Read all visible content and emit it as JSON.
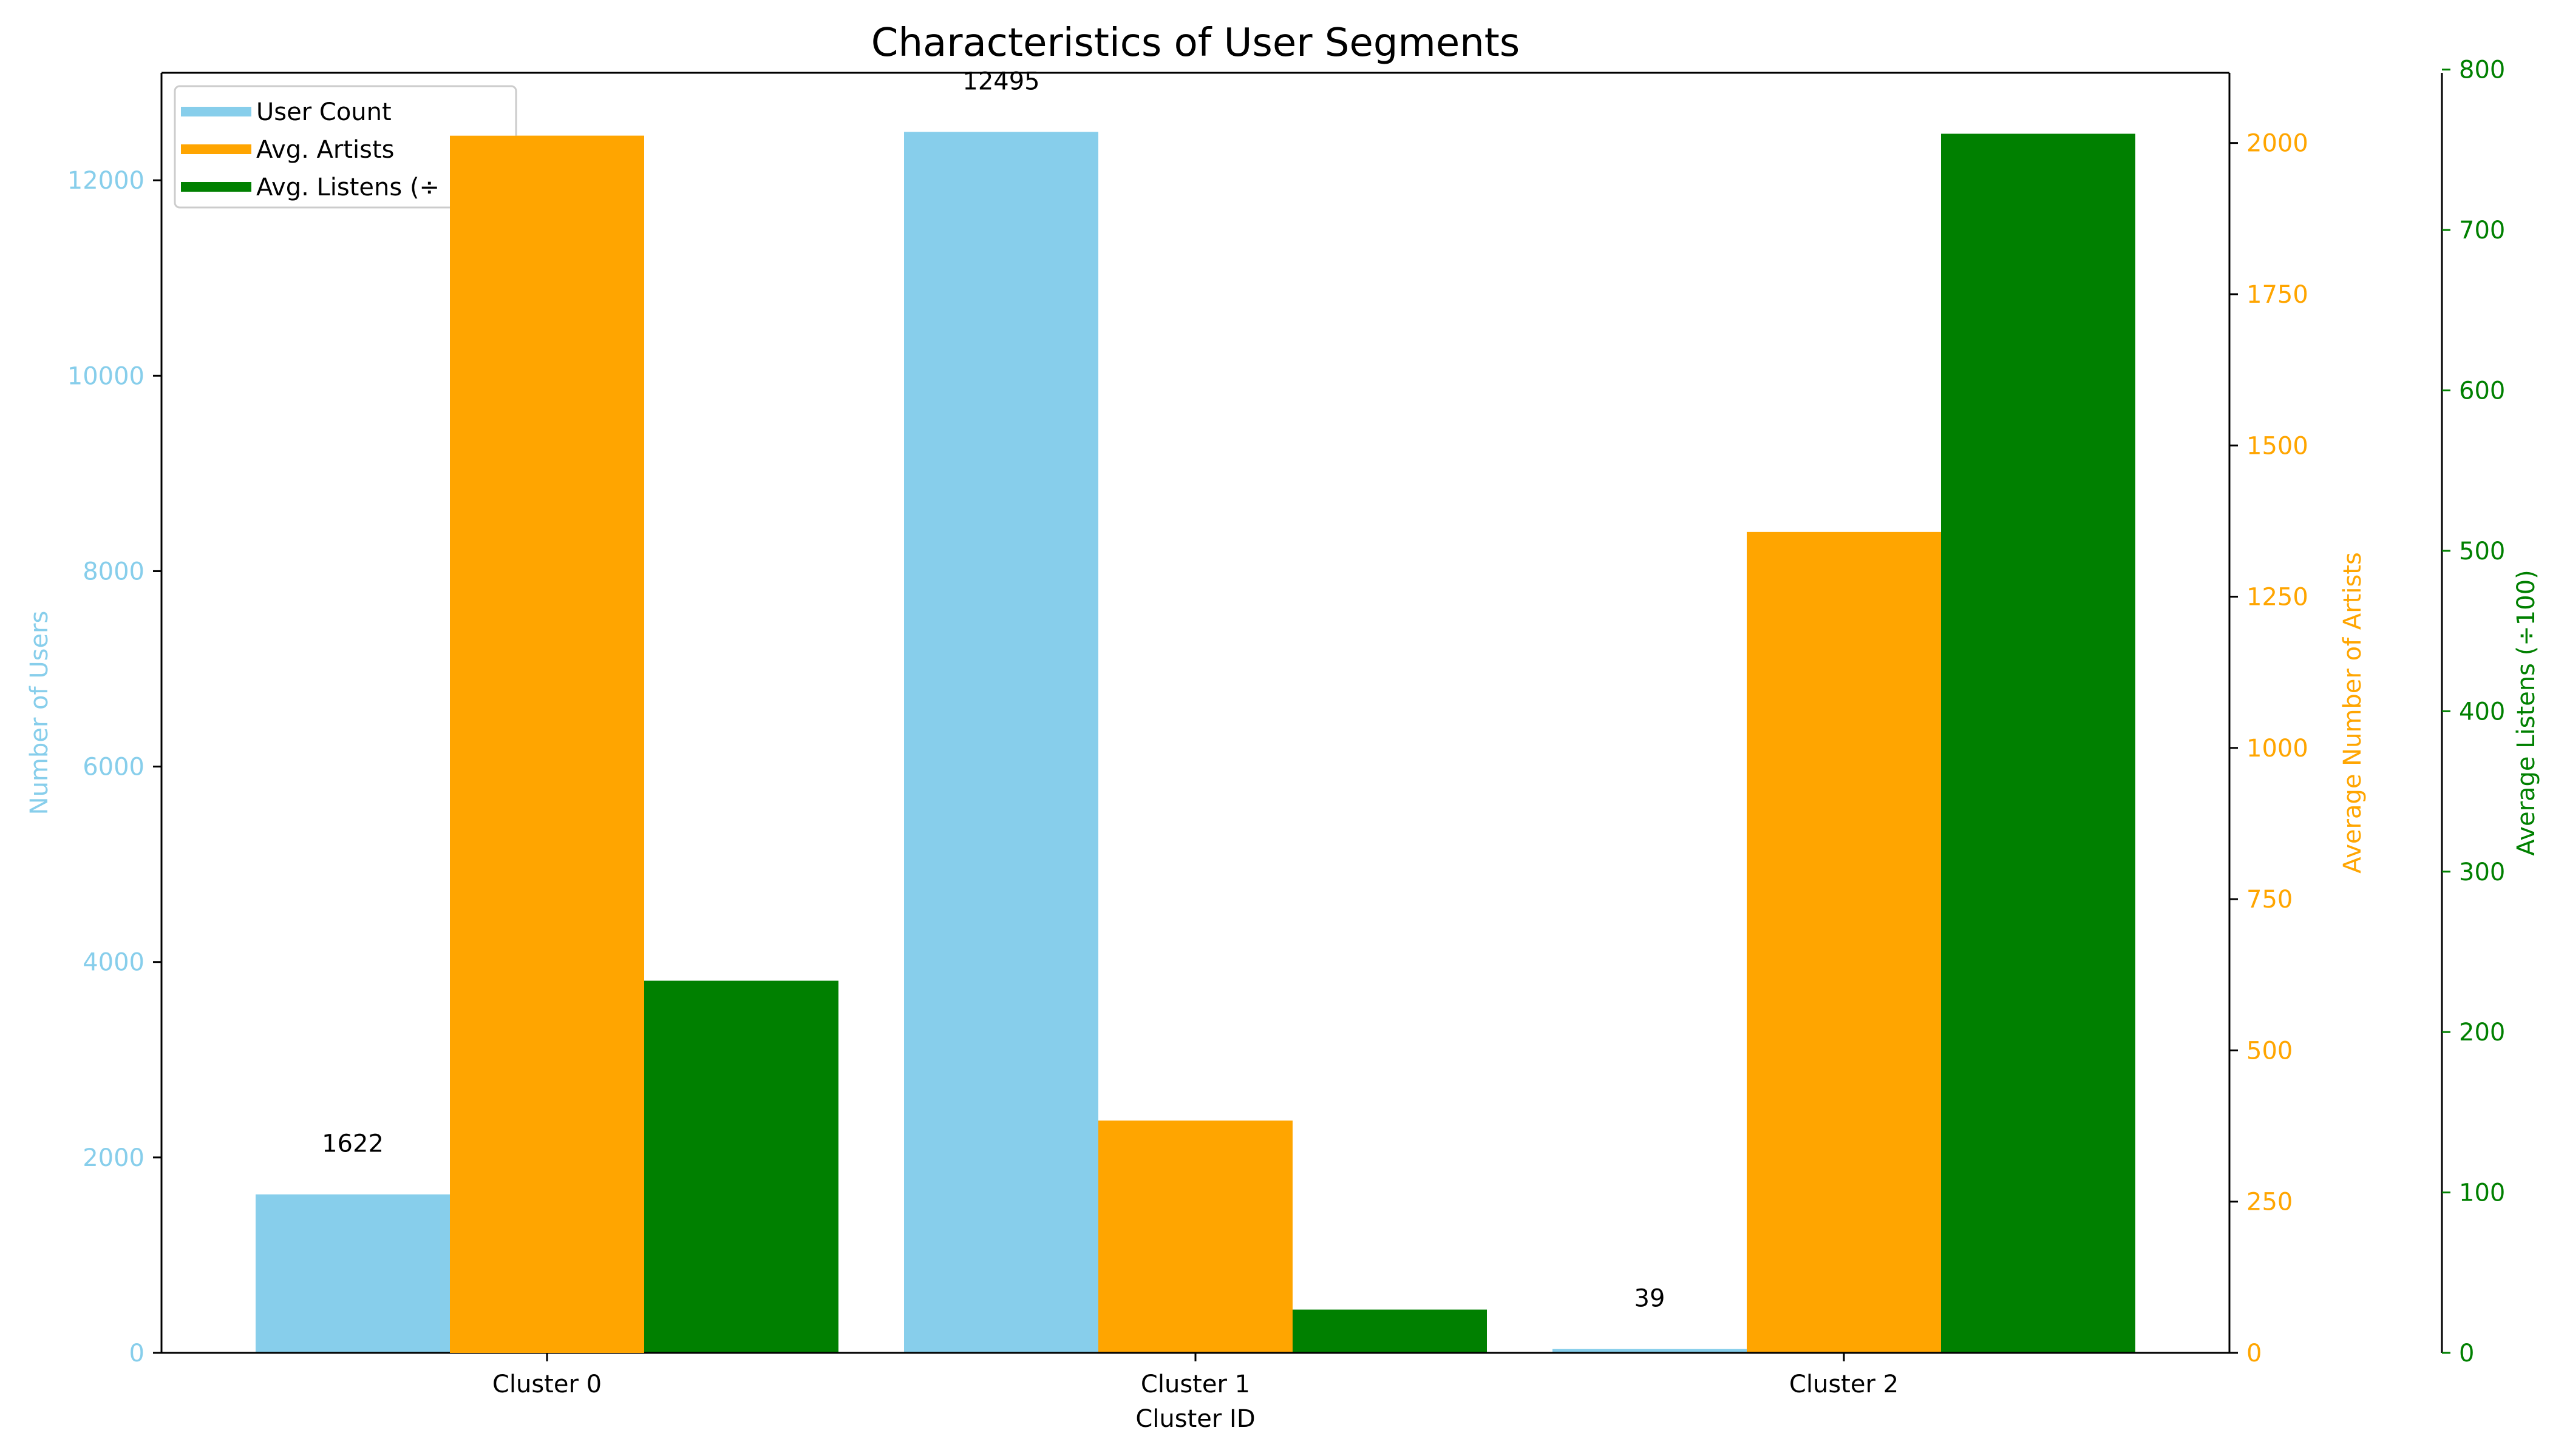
{
  "chart_data": {
    "type": "bar",
    "title": "Characteristics of User Segments",
    "xlabel": "Cluster ID",
    "categories": [
      "Cluster 0",
      "Cluster 1",
      "Cluster 2"
    ],
    "series": [
      {
        "name": "User Count",
        "axis": "left",
        "color": "#87ceeb",
        "values": [
          1622,
          12495,
          39
        ],
        "data_labels": [
          "1622",
          "12495",
          "39"
        ]
      },
      {
        "name": "Avg. Artists",
        "axis": "right",
        "color": "#ffa500",
        "values": [
          2012,
          384,
          1357
        ]
      },
      {
        "name": "Avg. Listens (÷100)",
        "axis": "right2",
        "color": "#008000",
        "values": [
          232,
          27,
          760
        ]
      }
    ],
    "axes": {
      "left": {
        "label": "Number of Users",
        "color": "#87ceeb",
        "ylim": [
          0,
          13100
        ],
        "ticks": [
          0,
          2000,
          4000,
          6000,
          8000,
          10000,
          12000
        ]
      },
      "right": {
        "label": "Average Number of Artists",
        "color": "#ffa500",
        "ylim": [
          0,
          2116
        ],
        "ticks": [
          0,
          250,
          500,
          750,
          1000,
          1250,
          1500,
          1750,
          2000
        ]
      },
      "right2": {
        "label": "Average Listens (÷100)",
        "color": "#008000",
        "ylim": [
          0,
          798
        ],
        "ticks": [
          0,
          100,
          200,
          300,
          400,
          500,
          600,
          700,
          800
        ]
      }
    },
    "legend": {
      "placement": "upper-left",
      "entries": [
        "User Count",
        "Avg. Artists",
        "Avg. Listens (÷"
      ]
    },
    "grid": false
  }
}
